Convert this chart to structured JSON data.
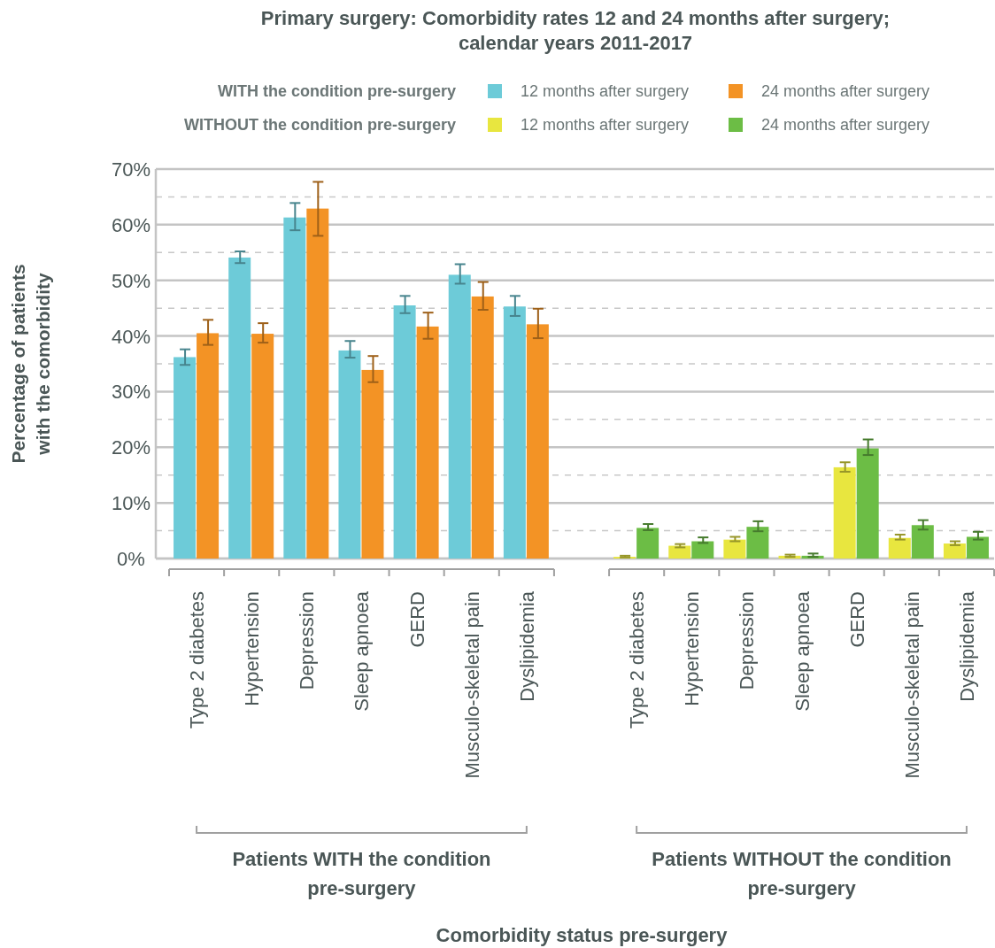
{
  "chart_data": {
    "type": "bar",
    "title": "Primary surgery: Comorbidity rates 12 and 24 months after surgery; calendar years 2011-2017",
    "ylabel": "Percentage of patients with the comorbidity",
    "categories": [
      "Type 2 diabetes",
      "Hypertension",
      "Depression",
      "Sleep apnoea",
      "GERD",
      "Musculo-skeletal pain",
      "Dyslipidemia",
      null,
      "Type 2 diabetes",
      "Hypertension",
      "Depression",
      "Sleep apnoea",
      "GERD",
      "Musculo-skeletal pain",
      "Dyslipidemia"
    ],
    "series": [
      {
        "name": "12 months after surgery",
        "color": "#6dcbd8",
        "values": [
          36.2,
          54.1,
          61.3,
          37.4,
          45.5,
          51.0,
          45.3,
          null,
          null,
          null,
          null,
          null,
          null,
          null,
          null
        ],
        "errors": [
          [
            34.8,
            37.6
          ],
          [
            53.1,
            55.2
          ],
          [
            59.0,
            63.9
          ],
          [
            36.1,
            39.1
          ],
          [
            44.1,
            47.2
          ],
          [
            49.4,
            52.9
          ],
          [
            43.6,
            47.2
          ],
          null,
          null,
          null,
          null,
          null,
          null,
          null,
          null
        ]
      },
      {
        "name": "24 months after surgery",
        "color": "#f39325",
        "values": [
          40.5,
          40.4,
          62.9,
          33.9,
          41.7,
          47.1,
          42.1,
          null,
          null,
          null,
          null,
          null,
          null,
          null,
          null
        ],
        "errors": [
          [
            38.4,
            42.9
          ],
          [
            38.8,
            42.3
          ],
          [
            58.0,
            67.7
          ],
          [
            31.7,
            36.4
          ],
          [
            39.5,
            44.2
          ],
          [
            44.7,
            49.7
          ],
          [
            39.6,
            44.9
          ],
          null,
          null,
          null,
          null,
          null,
          null,
          null,
          null
        ]
      },
      {
        "name": "12 months after surgery",
        "color": "#e8e63f",
        "values": [
          null,
          null,
          null,
          null,
          null,
          null,
          null,
          null,
          0.3,
          2.3,
          3.4,
          0.5,
          16.4,
          3.7,
          2.7
        ],
        "errors": [
          null,
          null,
          null,
          null,
          null,
          null,
          null,
          null,
          [
            0.2,
            0.5
          ],
          [
            2.0,
            2.6
          ],
          [
            3.1,
            3.9
          ],
          [
            0.3,
            0.7
          ],
          [
            15.6,
            17.3
          ],
          [
            3.4,
            4.3
          ],
          [
            2.4,
            3.1
          ]
        ]
      },
      {
        "name": "24 months after surgery",
        "color": "#6cbd45",
        "values": [
          null,
          null,
          null,
          null,
          null,
          null,
          null,
          null,
          5.5,
          3.1,
          5.7,
          0.5,
          19.8,
          6.0,
          3.9
        ],
        "errors": [
          null,
          null,
          null,
          null,
          null,
          null,
          null,
          null,
          [
            5.1,
            6.2
          ],
          [
            2.8,
            3.8
          ],
          [
            4.9,
            6.7
          ],
          [
            0.3,
            0.9
          ],
          [
            18.6,
            21.4
          ],
          [
            5.2,
            6.9
          ],
          [
            3.4,
            4.8
          ]
        ]
      }
    ],
    "ylim": [
      0,
      70
    ],
    "yticks": [
      {
        "value": 0,
        "label": "0%"
      },
      {
        "value": 5,
        "label": null
      },
      {
        "value": 10,
        "label": "10%"
      },
      {
        "value": 15,
        "label": null
      },
      {
        "value": 20,
        "label": "20%"
      },
      {
        "value": 25,
        "label": null
      },
      {
        "value": 30,
        "label": "30%"
      },
      {
        "value": 35,
        "label": null
      },
      {
        "value": 40,
        "label": "40%"
      },
      {
        "value": 45,
        "label": null
      },
      {
        "value": 50,
        "label": "50%"
      },
      {
        "value": 55,
        "label": null
      },
      {
        "value": 60,
        "label": "60%"
      },
      {
        "value": 65,
        "label": null
      },
      {
        "value": 70,
        "label": "70%"
      }
    ],
    "grid": "y",
    "legend": "top",
    "annotations": [
      "WITH the condition pre-surgery",
      "WITHOUT the condition pre-surgery",
      "Patients WITH the condition pre-surgery",
      "Patients WITHOUT the condition pre-surgery",
      "Comorbidity status pre-surgery"
    ]
  }
}
